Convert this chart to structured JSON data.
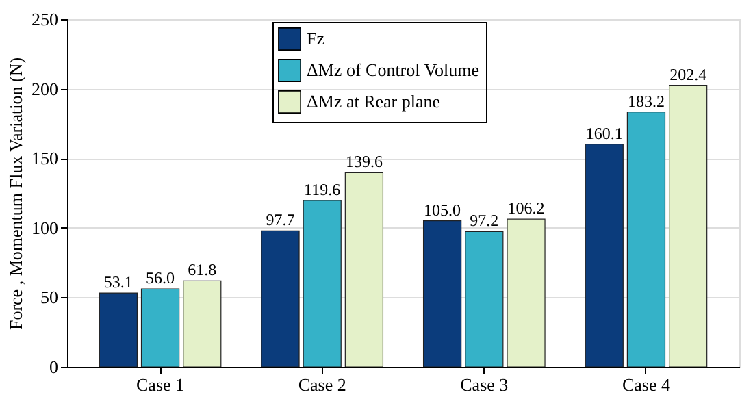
{
  "chart_data": {
    "type": "bar",
    "ylabel": "Force , Momentum Flux Variation (N)",
    "categories": [
      "Case 1",
      "Case 2",
      "Case 3",
      "Case 4"
    ],
    "series": [
      {
        "name": "Fz",
        "color": "#0b3c7c",
        "values": [
          53.1,
          97.7,
          105,
          160.1
        ],
        "value_labels": [
          "53.1",
          "97.7",
          "105.0",
          "160.1"
        ]
      },
      {
        "name": "ΔMz of Control Volume",
        "color": "#35b2c8",
        "values": [
          56,
          119.6,
          97.2,
          183.2
        ],
        "value_labels": [
          "56.0",
          "119.6",
          "97.2",
          "183.2"
        ]
      },
      {
        "name": "ΔMz at Rear plane",
        "color": "#e4f1c9",
        "values": [
          61.8,
          139.6,
          106.2,
          202.4
        ],
        "value_labels": [
          "61.8",
          "139.6",
          "106.2",
          "202.4"
        ]
      }
    ],
    "ylim": [
      0,
      250
    ],
    "yticks": [
      0,
      50,
      100,
      150,
      200,
      250
    ],
    "grid": "y",
    "legend": "top"
  }
}
